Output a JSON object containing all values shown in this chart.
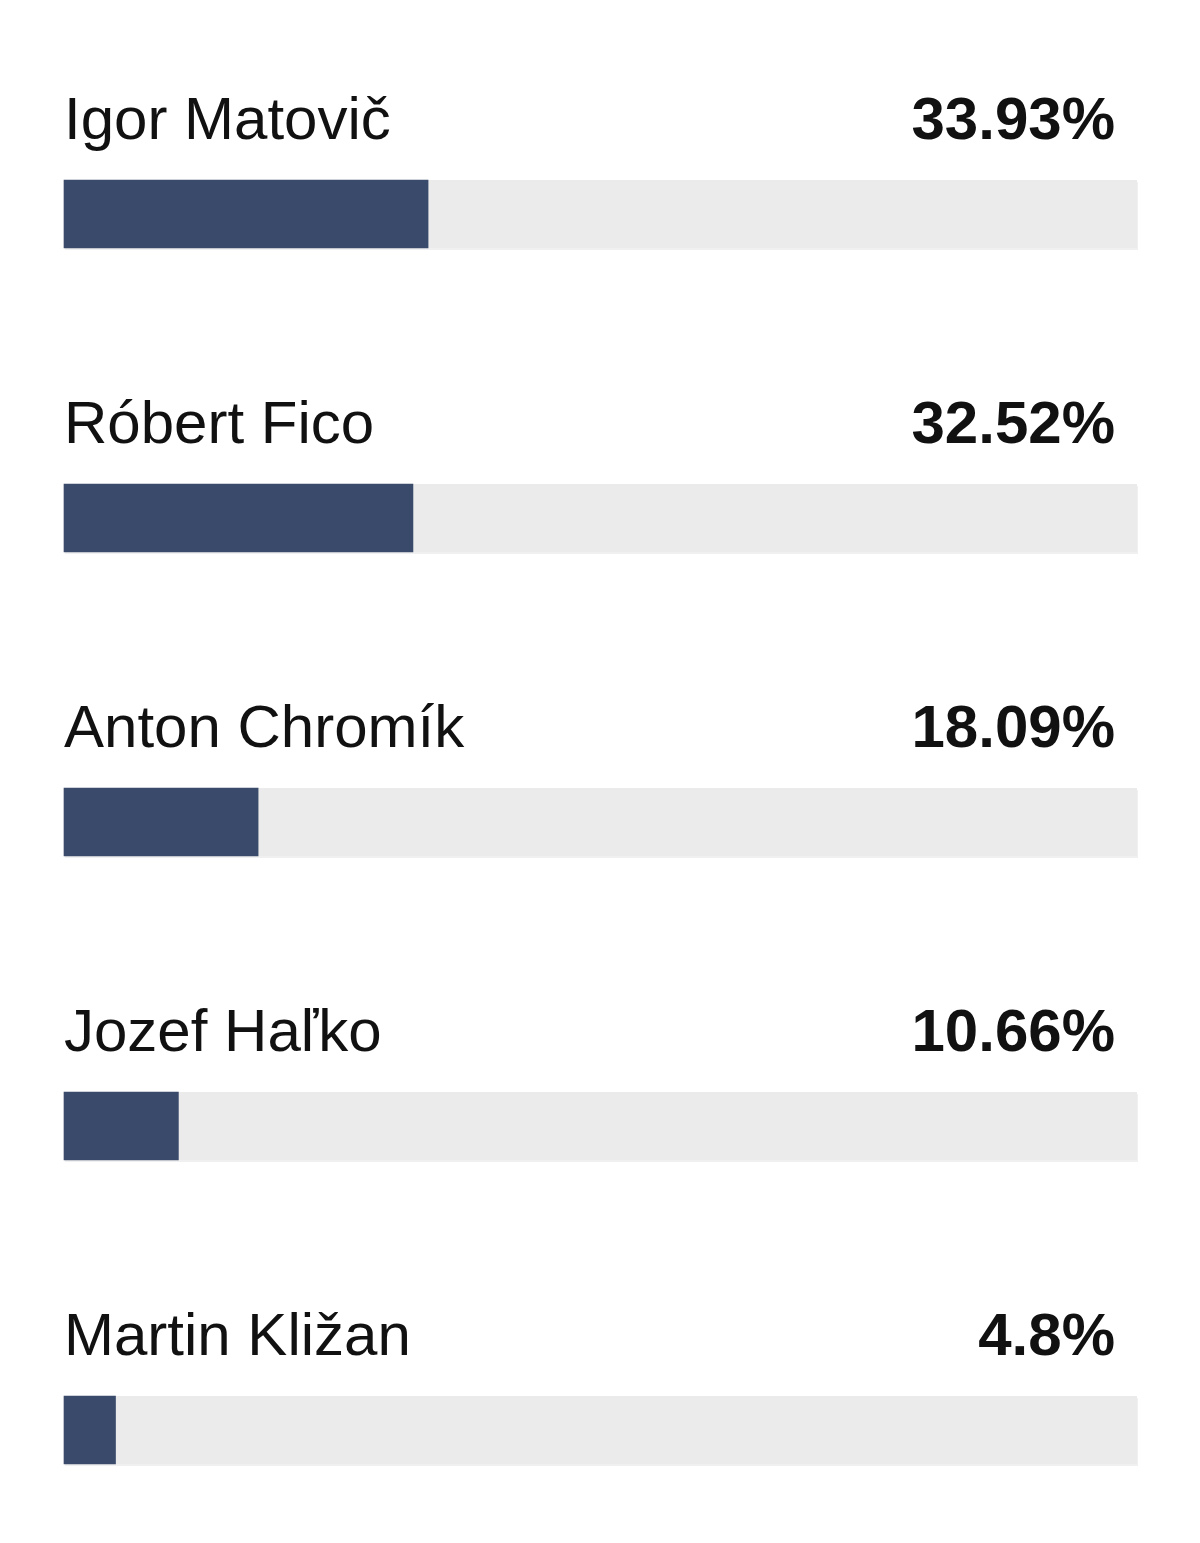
{
  "chart_data": {
    "type": "bar",
    "orientation": "horizontal",
    "categories": [
      "Igor Matovič",
      "Róbert Fico",
      "Anton Chromík",
      "Jozef Haľko",
      "Martin Kližan"
    ],
    "values": [
      33.93,
      32.52,
      18.09,
      10.66,
      4.8
    ],
    "value_labels": [
      "33.93%",
      "32.52%",
      "18.09%",
      "10.66%",
      "4.8%"
    ],
    "color": "#3a4a6b",
    "xlim": [
      0,
      100
    ],
    "tick_labels": "y",
    "legend": false
  }
}
